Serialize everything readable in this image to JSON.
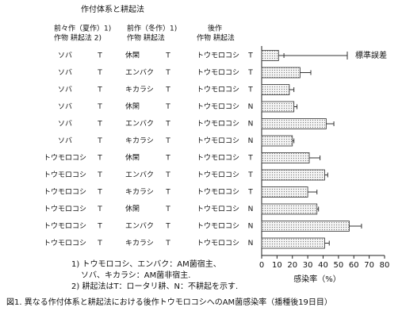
{
  "chart_data": {
    "type": "bar",
    "orientation": "horizontal",
    "title": "作付体系と耕起法",
    "headers": [
      "前々作（夏作）1)",
      "作物 耕起法 2)",
      "前作（冬作）1)",
      "作物 耕起法",
      "後作",
      "作物 耕起法"
    ],
    "rows": [
      [
        "ソバ",
        "T",
        "休閑",
        "T",
        "トウモロコシ",
        "T"
      ],
      [
        "ソバ",
        "T",
        "エンバク",
        "T",
        "トウモロコシ",
        "T"
      ],
      [
        "ソバ",
        "T",
        "キカラシ",
        "T",
        "トウモロコシ",
        "T"
      ],
      [
        "ソバ",
        "T",
        "休閑",
        "T",
        "トウモロコシ",
        "N"
      ],
      [
        "ソバ",
        "T",
        "エンバク",
        "T",
        "トウモロコシ",
        "N"
      ],
      [
        "ソバ",
        "T",
        "キカラシ",
        "T",
        "トウモロコシ",
        "N"
      ],
      [
        "トウモロコシ",
        "T",
        "休閑",
        "T",
        "トウモロコシ",
        "T"
      ],
      [
        "トウモロコシ",
        "T",
        "エンバク",
        "T",
        "トウモロコシ",
        "T"
      ],
      [
        "トウモロコシ",
        "T",
        "キカラシ",
        "T",
        "トウモロコシ",
        "T"
      ],
      [
        "トウモロコシ",
        "T",
        "休閑",
        "T",
        "トウモロコシ",
        "N"
      ],
      [
        "トウモロコシ",
        "T",
        "エンバク",
        "T",
        "トウモロコシ",
        "N"
      ],
      [
        "トウモロコシ",
        "T",
        "キカラシ",
        "T",
        "トウモロコシ",
        "N"
      ]
    ],
    "values": [
      11,
      25,
      18,
      21,
      42,
      20,
      31,
      41,
      30,
      36,
      57,
      41
    ],
    "errors": [
      3.5,
      7,
      3,
      2,
      5,
      1,
      7,
      2,
      6,
      1,
      8,
      3
    ],
    "color": "#d8d8d8",
    "xlim": [
      0,
      80
    ],
    "xticks": [
      0,
      10,
      20,
      30,
      40,
      50,
      60,
      70,
      80
    ],
    "xlabel": "感染率（%）",
    "error_legend": "標準誤差",
    "notes": [
      "1) トウモロコシ、エンバク：AM菌宿主、",
      "ソバ、キカラシ：AM菌非宿主.",
      "2) 耕起法はT：ロータリ耕、N：不耕起を示す."
    ],
    "caption": "図1.  異なる作付体系と耕起法における後作トウモロコシへのAM菌感染率（播種後19日目）"
  }
}
